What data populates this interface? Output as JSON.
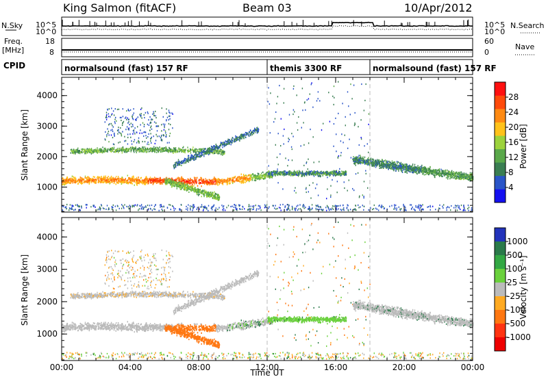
{
  "header": {
    "station": "King Salmon (fitACF)",
    "beam": "Beam 03",
    "date": "10/Apr/2012"
  },
  "sky_panel": {
    "left_label": "N.Sky",
    "right_label": "N.Search",
    "ticks_left": [
      "10^5",
      "10^0"
    ],
    "ticks_right": [
      "10^5",
      "10^0"
    ]
  },
  "freq_panel": {
    "left_label_1": "Freq.",
    "left_label_2": "[MHz]",
    "right_label": "Nave",
    "ticks_left": [
      "18",
      "8"
    ],
    "ticks_right": [
      "60",
      "0"
    ]
  },
  "cpid": {
    "label": "CPID",
    "segments": [
      {
        "name": "normalsound (fast) 157 RF",
        "start_h": 0,
        "end_h": 12
      },
      {
        "name": "themis 3300 RF",
        "start_h": 12,
        "end_h": 18
      },
      {
        "name": "normalsound (fast) 157 RF",
        "start_h": 18,
        "end_h": 24
      }
    ]
  },
  "chart_data": [
    {
      "type": "heatmap",
      "title": "",
      "quantity": "Power",
      "xlabel": "",
      "ylabel": "Slant Range [km]",
      "xlim": [
        0,
        24
      ],
      "ylim": [
        180,
        4600
      ],
      "yticks": [
        1000,
        2000,
        3000,
        4000
      ],
      "colorbar": {
        "label": "Power [dB]",
        "range": [
          0,
          32
        ],
        "ticks": [
          "4",
          "8",
          "12",
          "16",
          "20",
          "24",
          "28"
        ],
        "tick_values": [
          4,
          8,
          12,
          16,
          20,
          24,
          28
        ],
        "colors": [
          "#1410f0",
          "#2a55c8",
          "#3a7e52",
          "#5aa84a",
          "#9cd23c",
          "#ffc21a",
          "#ff8a12",
          "#ff4a0a",
          "#ff1010"
        ]
      }
    },
    {
      "type": "heatmap",
      "title": "",
      "quantity": "Velocity",
      "xlabel": "Time UT",
      "ylabel": "Slant Range [km]",
      "xlim": [
        0,
        24
      ],
      "ylim": [
        180,
        4600
      ],
      "yticks": [
        1000,
        2000,
        3000,
        4000
      ],
      "xticks": [
        "00:00",
        "04:00",
        "08:00",
        "12:00",
        "16:00",
        "20:00",
        "00:00"
      ],
      "colorbar": {
        "label": "Velocity [m s⁻¹]",
        "ticks": [
          "1000",
          "500",
          "100",
          "25",
          "-25",
          "-100",
          "-500",
          "-1000"
        ],
        "colors": [
          "#2233bb",
          "#2a7a4a",
          "#33a844",
          "#6ad13c",
          "#bbbbbb",
          "#ffaa22",
          "#ff7711",
          "#ff3311",
          "#ee0000"
        ]
      }
    }
  ]
}
